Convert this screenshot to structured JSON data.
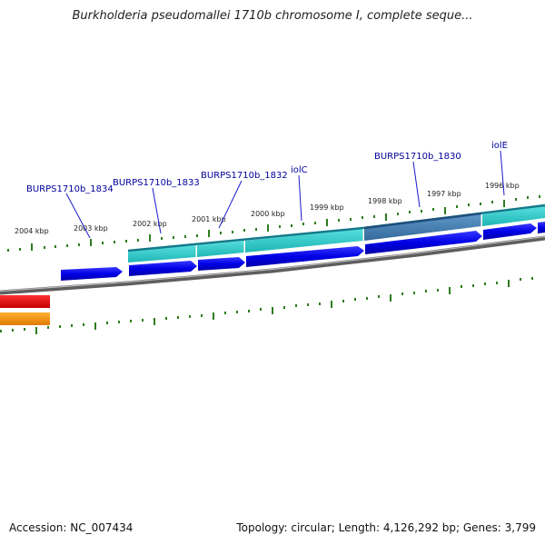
{
  "title": "Burkholderia pseudomallei 1710b chromosome I, complete seque...",
  "footer": {
    "accession": "Accession: NC_007434",
    "topology": "Topology: circular; Length: 4,126,292 bp; Genes: 3,799"
  },
  "colors": {
    "kbp_tick": "#2e7d1f",
    "gene_forward": "#0000e6",
    "gene_reverse": "#0000e6",
    "cds_band": "#2ec9c9",
    "cds_band_dark": "#3f7fb5",
    "backbone": "#808080",
    "feature_red": "#ee0000",
    "feature_orange": "#ff9900",
    "label_text": "#00009c"
  },
  "kbp_labels": [
    "2004 kbp",
    "2003 kbp",
    "2002 kbp",
    "2001 kbp",
    "2000 kbp",
    "1999 kbp",
    "1998 kbp",
    "1997 kbp",
    "1996 kbp"
  ],
  "gene_labels": [
    "BURPS1710b_1834",
    "BURPS1710b_1833",
    "BURPS1710b_1832",
    "iolC",
    "BURPS1710b_1830",
    "iolE"
  ]
}
